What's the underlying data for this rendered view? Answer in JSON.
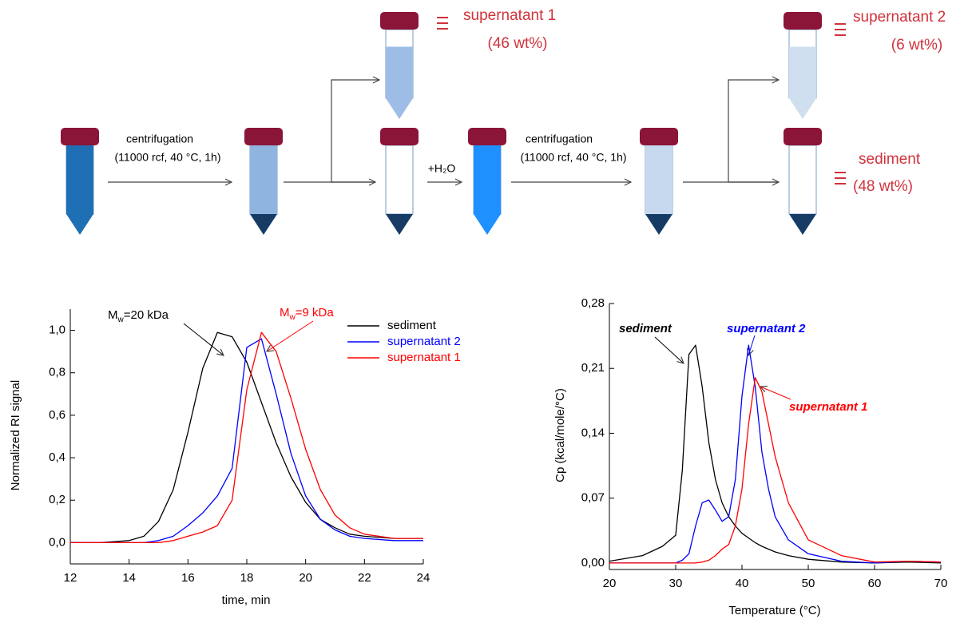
{
  "diagram": {
    "steps": [
      {
        "line1": "centrifugation",
        "line2": "(11000 rcf, 40 °C, 1h)"
      },
      {
        "line1": "centrifugation",
        "line2": "(11000 rcf, 40 °C, 1h)"
      }
    ],
    "water": "+H₂O",
    "fractions": [
      {
        "name": "supernatant 1",
        "amount": "(46 wt%)"
      },
      {
        "name": "supernatant 2",
        "amount": "(6 wt%)"
      },
      {
        "name": "sediment",
        "amount": "(48 wt%)"
      }
    ]
  },
  "chart_data": [
    {
      "type": "line",
      "x_label": "time, min",
      "y_label": "Normalized RI signal",
      "annotations": [
        {
          "main": "M",
          "sub": "w",
          "rest": "=20 kDa",
          "color": "#000000"
        },
        {
          "main": "M",
          "sub": "w",
          "rest": "=9 kDa",
          "color": "#ff0000"
        }
      ],
      "x": [
        12,
        13,
        14,
        14.5,
        15,
        15.5,
        16,
        16.5,
        17,
        17.5,
        18,
        18.5,
        19,
        19.5,
        20,
        20.5,
        21,
        21.5,
        22,
        23,
        24
      ],
      "series": [
        {
          "name": "sediment",
          "color": "#000000",
          "values": [
            0,
            0,
            0.01,
            0.03,
            0.1,
            0.25,
            0.52,
            0.82,
            0.99,
            0.97,
            0.85,
            0.66,
            0.47,
            0.31,
            0.19,
            0.11,
            0.07,
            0.04,
            0.03,
            0.02,
            0.02
          ]
        },
        {
          "name": "supernatant 2",
          "color": "#0000ff",
          "values": [
            0,
            0,
            0,
            0,
            0.01,
            0.03,
            0.08,
            0.14,
            0.22,
            0.35,
            0.92,
            0.96,
            0.7,
            0.42,
            0.22,
            0.11,
            0.06,
            0.03,
            0.02,
            0.01,
            0.01
          ]
        },
        {
          "name": "supernatant 1",
          "color": "#ff0000",
          "values": [
            0,
            0,
            0,
            0,
            0,
            0.01,
            0.03,
            0.05,
            0.08,
            0.2,
            0.72,
            0.99,
            0.9,
            0.68,
            0.44,
            0.25,
            0.13,
            0.07,
            0.04,
            0.02,
            0.02
          ]
        }
      ],
      "xlim": [
        12,
        24
      ],
      "xticks": [
        12,
        14,
        16,
        18,
        20,
        22,
        24
      ],
      "ylim": [
        -0.1,
        1.1
      ],
      "yticks": [
        {
          "value": 0,
          "label": "0,0"
        },
        {
          "value": 0.2,
          "label": "0,2"
        },
        {
          "value": 0.4,
          "label": "0,4"
        },
        {
          "value": 0.6,
          "label": "0,6"
        },
        {
          "value": 0.8,
          "label": "0,8"
        },
        {
          "value": 1.0,
          "label": "1,0"
        }
      ],
      "legend": "upper right"
    },
    {
      "type": "line",
      "x_label": "Temperature (°C)",
      "y_label": "Cp (kcal/mole/°C)",
      "x": [
        20,
        25,
        28,
        30,
        31,
        32,
        33,
        34,
        35,
        36,
        37,
        38,
        39,
        40,
        41,
        42,
        43,
        44,
        45,
        47,
        50,
        55,
        60,
        65,
        70
      ],
      "series": [
        {
          "name": "sediment",
          "color": "#000000",
          "values": [
            0.002,
            0.008,
            0.018,
            0.03,
            0.1,
            0.225,
            0.235,
            0.19,
            0.13,
            0.09,
            0.065,
            0.05,
            0.04,
            0.032,
            0.027,
            0.022,
            0.018,
            0.015,
            0.012,
            0.008,
            0.004,
            0.001,
            0,
            0.001,
            0
          ]
        },
        {
          "name": "supernatant 2",
          "color": "#0000ff",
          "values": [
            0,
            0,
            0,
            0,
            0.003,
            0.01,
            0.04,
            0.065,
            0.068,
            0.057,
            0.045,
            0.05,
            0.09,
            0.18,
            0.235,
            0.19,
            0.12,
            0.08,
            0.05,
            0.025,
            0.01,
            0.002,
            0,
            0.002,
            0.001
          ]
        },
        {
          "name": "supernatant 1",
          "color": "#ff0000",
          "values": [
            0,
            0,
            0,
            0,
            0,
            0,
            0,
            0.001,
            0.003,
            0.008,
            0.015,
            0.02,
            0.04,
            0.08,
            0.15,
            0.2,
            0.185,
            0.15,
            0.115,
            0.065,
            0.025,
            0.008,
            0.001,
            0.002,
            0.001
          ]
        }
      ],
      "xlim": [
        20,
        70
      ],
      "xticks": [
        20,
        30,
        40,
        50,
        60,
        70
      ],
      "ylim": [
        -0.007,
        0.28
      ],
      "yticks": [
        {
          "value": 0,
          "label": "0,00"
        },
        {
          "value": 0.07,
          "label": "0,07"
        },
        {
          "value": 0.14,
          "label": "0,14"
        },
        {
          "value": 0.21,
          "label": "0,21"
        },
        {
          "value": 0.28,
          "label": "0,28"
        }
      ]
    }
  ]
}
